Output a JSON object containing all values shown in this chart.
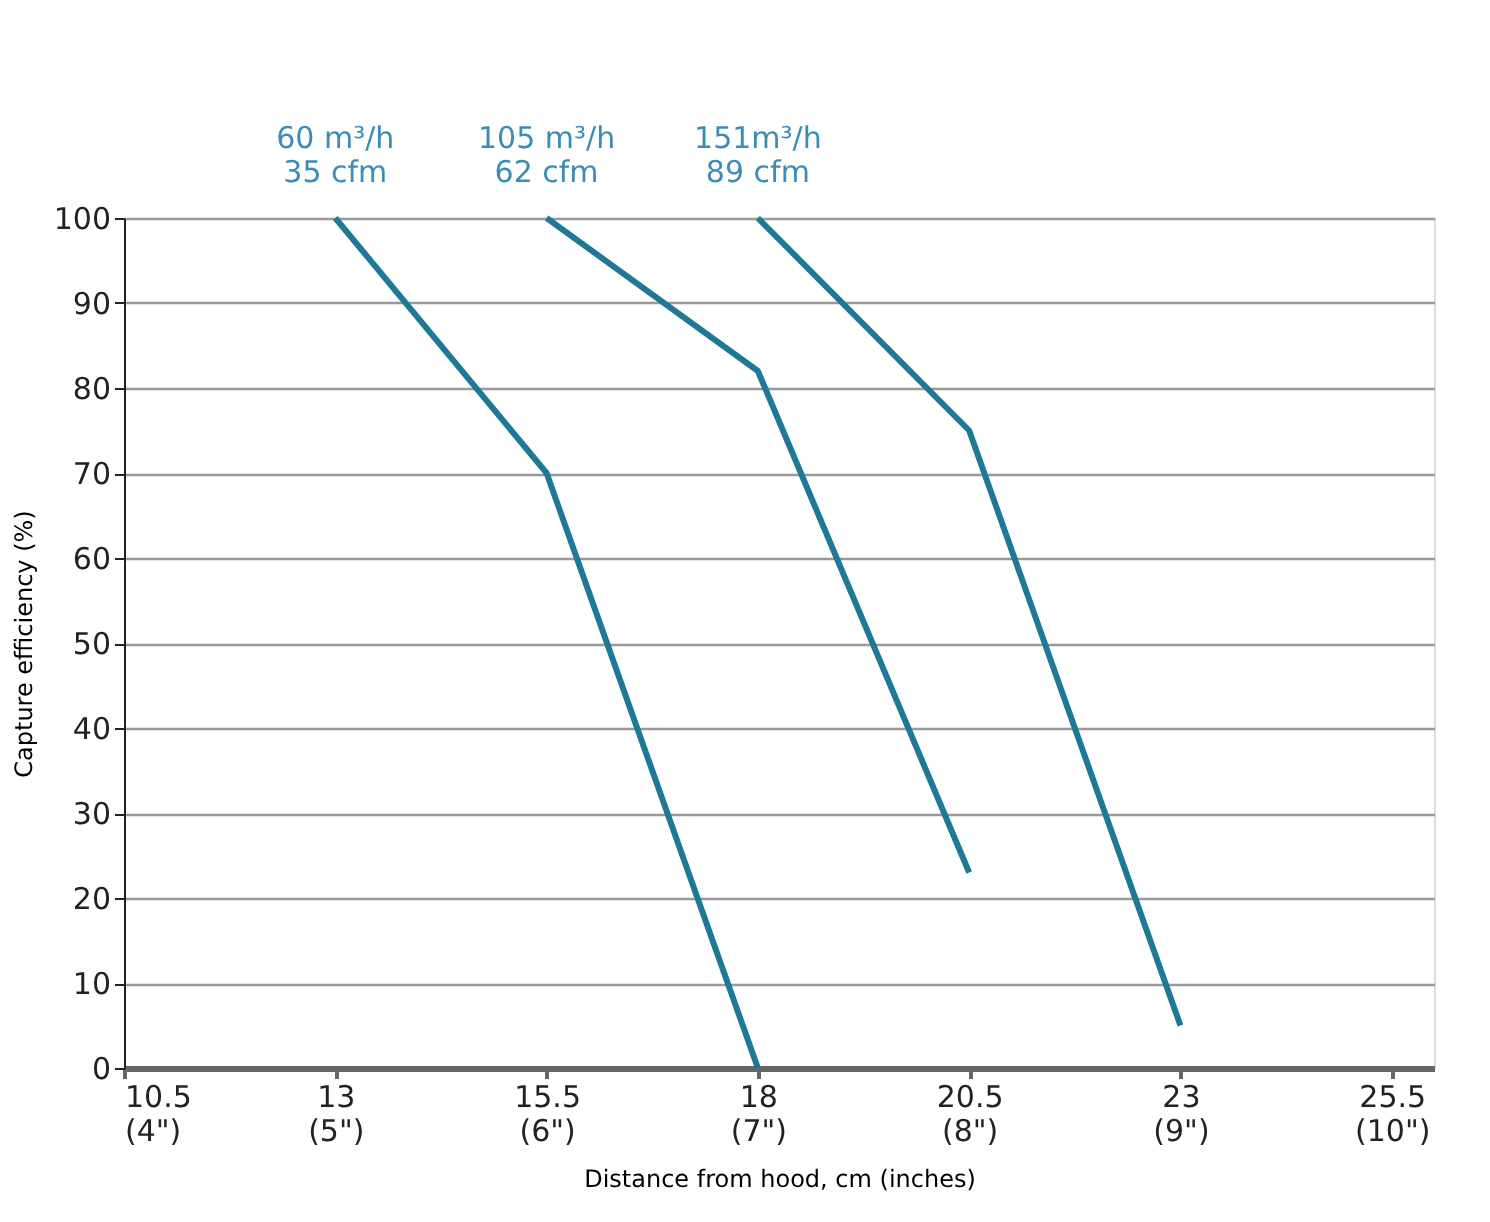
{
  "chart_data": {
    "type": "line",
    "xlabel": "Distance from hood, cm (inches)",
    "ylabel": "Capture efficiency (%)",
    "series": [
      {
        "color": "#1f7896",
        "x": [
          13,
          15.5,
          18
        ],
        "values": [
          100,
          70,
          0
        ]
      },
      {
        "color": "#1f7896",
        "x": [
          15.5,
          18,
          20.5
        ],
        "values": [
          100,
          82,
          23
        ]
      },
      {
        "color": "#1f7896",
        "x": [
          18,
          20.5,
          23
        ],
        "values": [
          100,
          75,
          5
        ]
      }
    ],
    "annotations": [
      {
        "text": "60 m³/h\n35 cfm",
        "x": 13,
        "y": 100
      },
      {
        "text": "105 m³/h\n62 cfm",
        "x": 15.5,
        "y": 100
      },
      {
        "text": "151m³/h\n89 cfm",
        "x": 18,
        "y": 100
      }
    ],
    "xlim": [
      10.5,
      26
    ],
    "ylim": [
      0,
      100
    ],
    "xticks": [
      10.5,
      13,
      15.5,
      18,
      20.5,
      23,
      25.5
    ],
    "x2lim": [
      4,
      10.2
    ],
    "x2ticks": [
      {
        "value": 4,
        "label": "(4\")"
      },
      {
        "value": 5,
        "label": "(5\")"
      },
      {
        "value": 6,
        "label": "(6\")"
      },
      {
        "value": 7,
        "label": "(7\")"
      },
      {
        "value": 8,
        "label": "(8\")"
      },
      {
        "value": 9,
        "label": "(9\")"
      },
      {
        "value": 10,
        "label": "(10\")"
      }
    ],
    "yticks": [
      0,
      10,
      20,
      30,
      40,
      50,
      60,
      70,
      80,
      90,
      100
    ],
    "grid": "y",
    "marker": "none",
    "line_style": "solid"
  }
}
